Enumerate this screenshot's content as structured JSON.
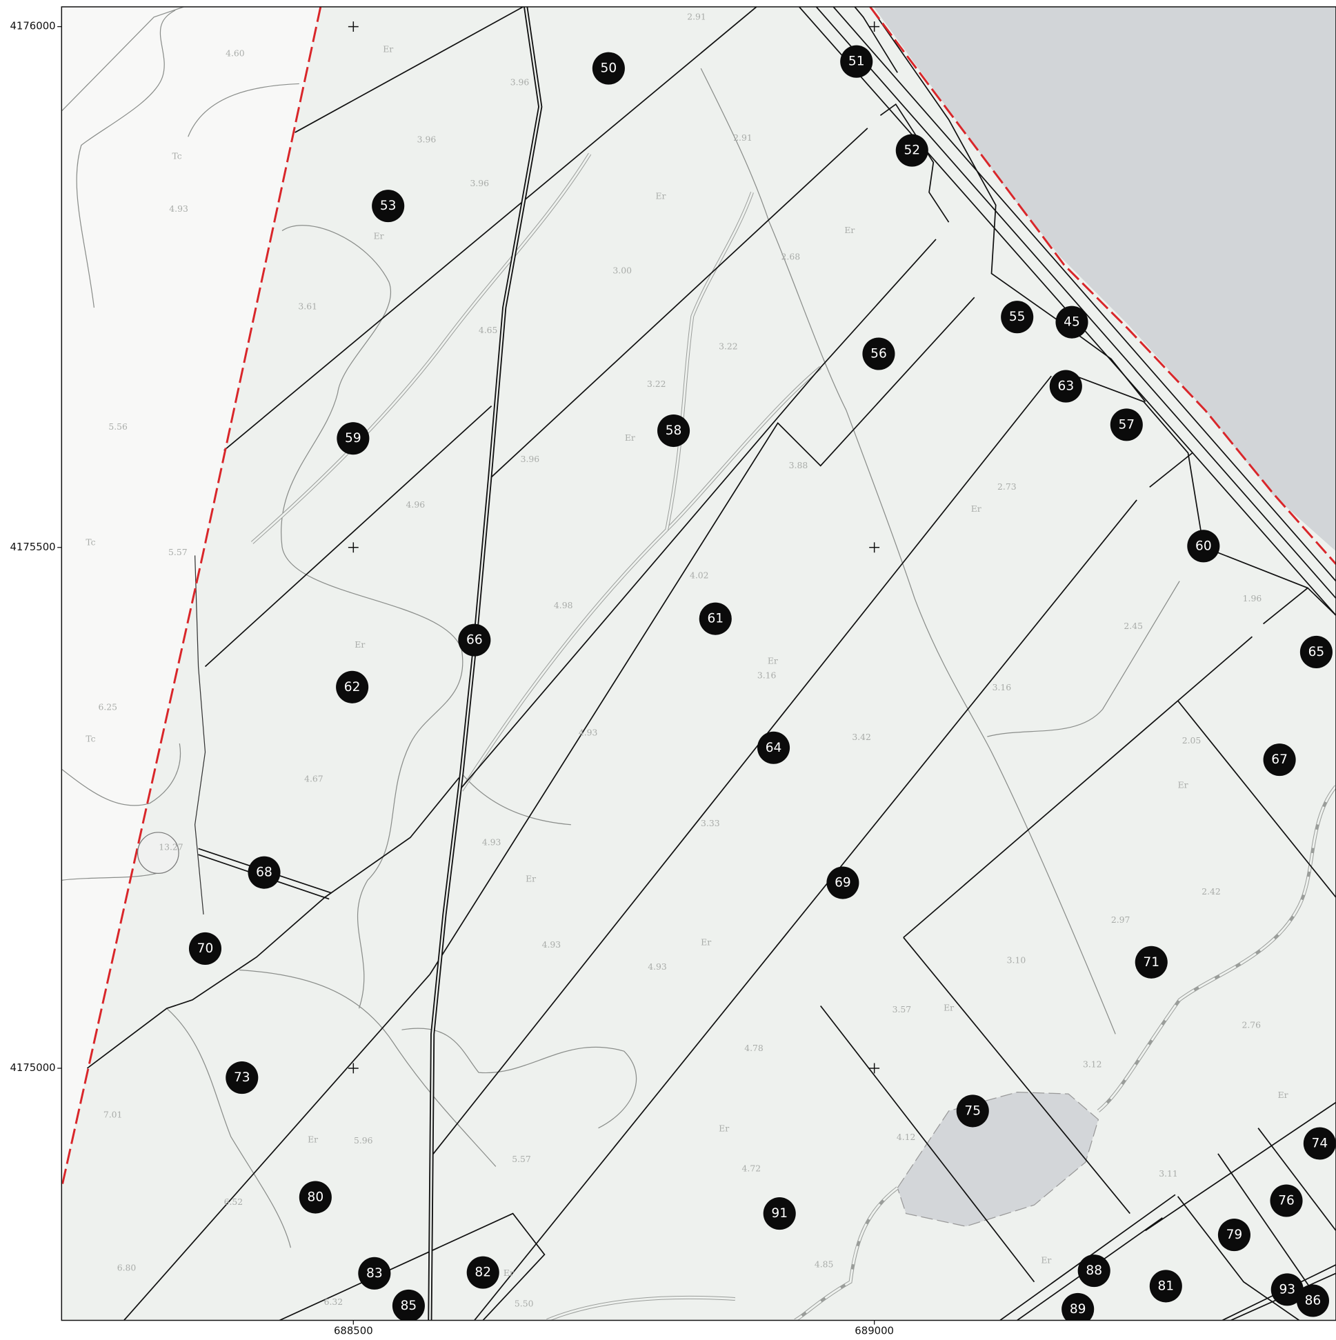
{
  "map": {
    "xlim": [
      688220,
      689443
    ],
    "ylim": [
      4174758,
      4176019
    ],
    "xticks": [
      688500,
      689000
    ],
    "yticks": [
      4175000,
      4175500,
      4176000
    ],
    "parcels": [
      "50",
      "51",
      "52",
      "53",
      "55",
      "45",
      "56",
      "63",
      "57",
      "58",
      "59",
      "60",
      "61",
      "66",
      "65",
      "62",
      "64",
      "67",
      "68",
      "69",
      "70",
      "71",
      "73",
      "75",
      "74",
      "80",
      "76",
      "91",
      "79",
      "88",
      "83",
      "82",
      "81",
      "93",
      "86",
      "85",
      "89"
    ],
    "labels": [
      "4.60",
      "Er",
      "2.91",
      "3.96",
      "3.96",
      "3.96",
      "Tc",
      "4.93",
      "Er",
      "2.91",
      "Er",
      "Er",
      "3.00",
      "2.68",
      "4.65",
      "3.61",
      "3.22",
      "3.22",
      "5.56",
      "Er",
      "3.88",
      "3.96",
      "4.96",
      "2.73",
      "Er",
      "Tc",
      "5.57",
      "4.02",
      "4.98",
      "1.96",
      "2.45",
      "Er",
      "Er",
      "3.16",
      "3.16",
      "6.25",
      "Tc",
      "4.93",
      "3.42",
      "2.05",
      "Er",
      "4.67",
      "3.33",
      "4.93",
      "13.27",
      "Er",
      "2.42",
      "2.97",
      "4.93",
      "Er",
      "4.93",
      "3.10",
      "3.57",
      "Er",
      "4.78",
      "2.76",
      "3.12",
      "7.01",
      "Er",
      "5.96",
      "Er",
      "4.12",
      "5.57",
      "4.72",
      "3.11",
      "Er",
      "6.52",
      "6.80",
      "4.85",
      "Er",
      "Er",
      "6.32",
      "5.50"
    ]
  }
}
